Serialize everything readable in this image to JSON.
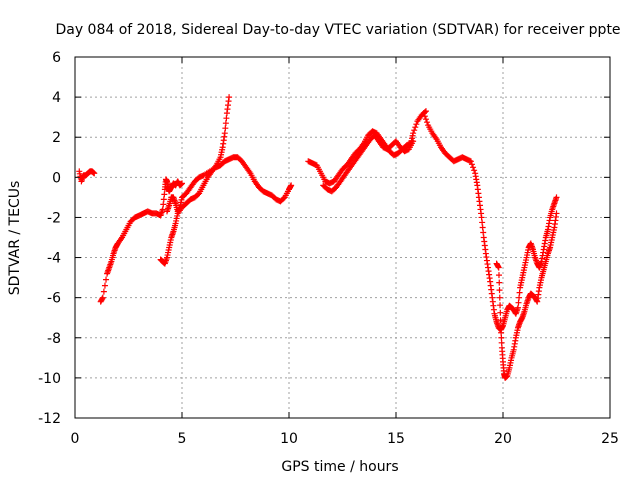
{
  "chart_data": {
    "type": "scatter",
    "title": "Day 084 of 2018, Sidereal Day-to-day VTEC variation (SDTVAR) for receiver ppte",
    "xlabel": "GPS time / hours",
    "ylabel": "SDTVAR / TECUs",
    "xlim": [
      0,
      25
    ],
    "ylim": [
      -12,
      6
    ],
    "xticks": [
      "0",
      "5",
      "10",
      "15",
      "20",
      "25"
    ],
    "yticks": [
      "6",
      "4",
      "2",
      "0",
      "-2",
      "-4",
      "-6",
      "-8",
      "-10",
      "-12"
    ],
    "grid": true,
    "marker": "+",
    "color": "#ff0000",
    "series": [
      {
        "points": [
          [
            0.2,
            0.3
          ],
          [
            0.3,
            -0.2
          ],
          [
            0.4,
            0.1
          ],
          [
            0.5,
            0.1
          ],
          [
            0.6,
            0.2
          ],
          [
            0.7,
            0.3
          ],
          [
            0.8,
            0.3
          ],
          [
            0.9,
            0.2
          ]
        ]
      },
      {
        "points": [
          [
            1.2,
            -6.2
          ],
          [
            1.3,
            -6.0
          ],
          [
            1.5,
            -4.8
          ],
          [
            1.6,
            -4.5
          ],
          [
            1.7,
            -4.2
          ],
          [
            1.8,
            -3.8
          ],
          [
            1.9,
            -3.5
          ],
          [
            2.0,
            -3.3
          ],
          [
            2.2,
            -3.0
          ],
          [
            2.4,
            -2.6
          ],
          [
            2.6,
            -2.2
          ],
          [
            2.8,
            -2.0
          ],
          [
            3.0,
            -1.9
          ],
          [
            3.2,
            -1.8
          ],
          [
            3.4,
            -1.7
          ],
          [
            3.6,
            -1.8
          ],
          [
            3.8,
            -1.8
          ],
          [
            4.0,
            -1.9
          ],
          [
            4.1,
            -1.6
          ],
          [
            4.2,
            -0.6
          ],
          [
            4.25,
            -0.1
          ],
          [
            4.3,
            -0.2
          ],
          [
            4.35,
            -0.5
          ],
          [
            4.4,
            -0.7
          ],
          [
            4.5,
            -0.5
          ],
          [
            4.6,
            -0.3
          ],
          [
            4.7,
            -0.4
          ],
          [
            4.8,
            -0.2
          ],
          [
            4.9,
            -0.4
          ],
          [
            5.0,
            -0.3
          ]
        ]
      },
      {
        "points": [
          [
            4.0,
            -4.1
          ],
          [
            4.1,
            -4.2
          ],
          [
            4.2,
            -4.3
          ],
          [
            4.3,
            -4.0
          ],
          [
            4.4,
            -3.5
          ],
          [
            4.5,
            -3.0
          ],
          [
            4.6,
            -2.7
          ],
          [
            4.7,
            -2.3
          ],
          [
            4.8,
            -1.8
          ],
          [
            5.0,
            -1.5
          ],
          [
            5.2,
            -1.3
          ],
          [
            5.4,
            -1.1
          ],
          [
            5.6,
            -1.0
          ],
          [
            5.8,
            -0.8
          ],
          [
            6.0,
            -0.4
          ],
          [
            6.2,
            0.0
          ],
          [
            6.4,
            0.3
          ],
          [
            6.6,
            0.6
          ],
          [
            6.8,
            1.0
          ],
          [
            6.9,
            1.5
          ],
          [
            7.0,
            2.2
          ],
          [
            7.1,
            3.2
          ],
          [
            7.2,
            4.0
          ]
        ]
      },
      {
        "points": [
          [
            4.3,
            -1.7
          ],
          [
            4.4,
            -1.4
          ],
          [
            4.5,
            -1.0
          ],
          [
            4.6,
            -1.0
          ],
          [
            4.7,
            -1.3
          ],
          [
            4.8,
            -1.7
          ],
          [
            4.9,
            -1.5
          ],
          [
            5.0,
            -1.0
          ],
          [
            5.2,
            -0.8
          ],
          [
            5.4,
            -0.5
          ],
          [
            5.6,
            -0.2
          ],
          [
            5.8,
            0.0
          ],
          [
            6.0,
            0.1
          ],
          [
            6.3,
            0.3
          ],
          [
            6.6,
            0.5
          ],
          [
            6.8,
            0.6
          ],
          [
            7.0,
            0.8
          ],
          [
            7.2,
            0.9
          ],
          [
            7.4,
            1.0
          ],
          [
            7.6,
            1.0
          ],
          [
            7.8,
            0.8
          ],
          [
            8.0,
            0.5
          ],
          [
            8.2,
            0.2
          ],
          [
            8.4,
            -0.2
          ],
          [
            8.6,
            -0.5
          ],
          [
            8.8,
            -0.7
          ],
          [
            9.0,
            -0.8
          ],
          [
            9.2,
            -0.9
          ],
          [
            9.4,
            -1.1
          ],
          [
            9.6,
            -1.2
          ],
          [
            9.8,
            -1.0
          ],
          [
            10.0,
            -0.6
          ],
          [
            10.1,
            -0.4
          ]
        ]
      },
      {
        "points": [
          [
            10.9,
            0.8
          ],
          [
            11.1,
            0.7
          ],
          [
            11.3,
            0.6
          ],
          [
            11.5,
            0.2
          ],
          [
            11.7,
            -0.2
          ],
          [
            11.9,
            -0.3
          ],
          [
            12.1,
            -0.2
          ],
          [
            12.3,
            0.1
          ],
          [
            12.5,
            0.4
          ],
          [
            12.7,
            0.6
          ],
          [
            12.9,
            0.9
          ],
          [
            13.1,
            1.2
          ],
          [
            13.3,
            1.4
          ],
          [
            13.5,
            1.7
          ],
          [
            13.7,
            2.1
          ],
          [
            13.9,
            2.3
          ],
          [
            14.1,
            2.2
          ],
          [
            14.3,
            1.9
          ],
          [
            14.5,
            1.6
          ],
          [
            14.7,
            1.3
          ],
          [
            14.9,
            1.1
          ],
          [
            15.1,
            1.2
          ],
          [
            15.3,
            1.4
          ],
          [
            15.5,
            1.6
          ],
          [
            15.7,
            1.7
          ],
          [
            15.8,
            2.2
          ],
          [
            16.0,
            2.8
          ],
          [
            16.2,
            3.1
          ],
          [
            16.4,
            3.3
          ]
        ]
      },
      {
        "points": [
          [
            11.6,
            -0.4
          ],
          [
            11.8,
            -0.6
          ],
          [
            12.0,
            -0.7
          ],
          [
            12.2,
            -0.5
          ],
          [
            12.4,
            -0.2
          ],
          [
            12.6,
            0.1
          ],
          [
            12.8,
            0.4
          ],
          [
            13.0,
            0.7
          ],
          [
            13.2,
            1.0
          ],
          [
            13.4,
            1.3
          ],
          [
            13.6,
            1.6
          ],
          [
            13.8,
            1.9
          ],
          [
            14.0,
            2.1
          ],
          [
            14.2,
            1.8
          ],
          [
            14.4,
            1.5
          ],
          [
            14.6,
            1.4
          ],
          [
            14.8,
            1.6
          ],
          [
            15.0,
            1.8
          ],
          [
            15.2,
            1.5
          ],
          [
            15.4,
            1.3
          ],
          [
            15.6,
            1.4
          ],
          [
            15.8,
            1.8
          ]
        ]
      },
      {
        "points": [
          [
            16.3,
            3.2
          ],
          [
            16.5,
            2.6
          ],
          [
            16.7,
            2.2
          ],
          [
            16.9,
            1.9
          ],
          [
            17.1,
            1.5
          ],
          [
            17.3,
            1.2
          ],
          [
            17.5,
            1.0
          ],
          [
            17.7,
            0.8
          ],
          [
            17.9,
            0.9
          ],
          [
            18.1,
            1.0
          ],
          [
            18.3,
            0.9
          ],
          [
            18.5,
            0.8
          ],
          [
            18.7,
            0.2
          ],
          [
            18.8,
            -0.4
          ],
          [
            18.9,
            -1.2
          ],
          [
            19.0,
            -2.0
          ],
          [
            19.1,
            -3.0
          ],
          [
            19.2,
            -3.8
          ],
          [
            19.3,
            -4.5
          ],
          [
            19.4,
            -5.2
          ],
          [
            19.5,
            -6.0
          ],
          [
            19.6,
            -6.8
          ],
          [
            19.7,
            -7.2
          ],
          [
            19.8,
            -7.5
          ],
          [
            19.9,
            -7.6
          ],
          [
            20.0,
            -7.4
          ],
          [
            20.1,
            -7.0
          ],
          [
            20.2,
            -6.6
          ],
          [
            20.3,
            -6.4
          ],
          [
            20.4,
            -6.5
          ],
          [
            20.5,
            -6.6
          ],
          [
            20.6,
            -6.8
          ],
          [
            20.7,
            -6.5
          ],
          [
            20.8,
            -5.5
          ],
          [
            20.9,
            -5.0
          ],
          [
            21.0,
            -4.5
          ],
          [
            21.1,
            -4.0
          ],
          [
            21.2,
            -3.5
          ],
          [
            21.3,
            -3.3
          ],
          [
            21.4,
            -3.6
          ],
          [
            21.5,
            -4.0
          ],
          [
            21.6,
            -4.3
          ],
          [
            21.7,
            -4.5
          ],
          [
            21.8,
            -4.2
          ],
          [
            21.9,
            -3.6
          ],
          [
            22.0,
            -3.0
          ],
          [
            22.1,
            -2.6
          ],
          [
            22.2,
            -2.0
          ],
          [
            22.3,
            -1.6
          ],
          [
            22.4,
            -1.3
          ],
          [
            22.5,
            -1.0
          ]
        ]
      },
      {
        "points": [
          [
            19.7,
            -4.3
          ],
          [
            19.8,
            -4.5
          ],
          [
            19.85,
            -6.0
          ],
          [
            19.9,
            -7.5
          ],
          [
            19.95,
            -8.5
          ],
          [
            20.0,
            -9.2
          ],
          [
            20.05,
            -9.8
          ],
          [
            20.1,
            -10.0
          ],
          [
            20.2,
            -9.9
          ],
          [
            20.3,
            -9.5
          ],
          [
            20.4,
            -9.0
          ],
          [
            20.5,
            -8.6
          ],
          [
            20.6,
            -8.0
          ],
          [
            20.7,
            -7.5
          ],
          [
            20.8,
            -7.2
          ],
          [
            20.9,
            -7.0
          ],
          [
            21.0,
            -6.7
          ],
          [
            21.1,
            -6.3
          ],
          [
            21.2,
            -6.0
          ],
          [
            21.3,
            -5.8
          ],
          [
            21.4,
            -5.9
          ],
          [
            21.5,
            -6.0
          ],
          [
            21.6,
            -6.2
          ],
          [
            21.7,
            -5.5
          ],
          [
            21.8,
            -5.0
          ],
          [
            21.9,
            -4.6
          ],
          [
            22.0,
            -4.2
          ],
          [
            22.1,
            -3.8
          ],
          [
            22.2,
            -3.5
          ],
          [
            22.3,
            -3.0
          ],
          [
            22.4,
            -2.5
          ],
          [
            22.5,
            -1.8
          ]
        ]
      }
    ]
  }
}
